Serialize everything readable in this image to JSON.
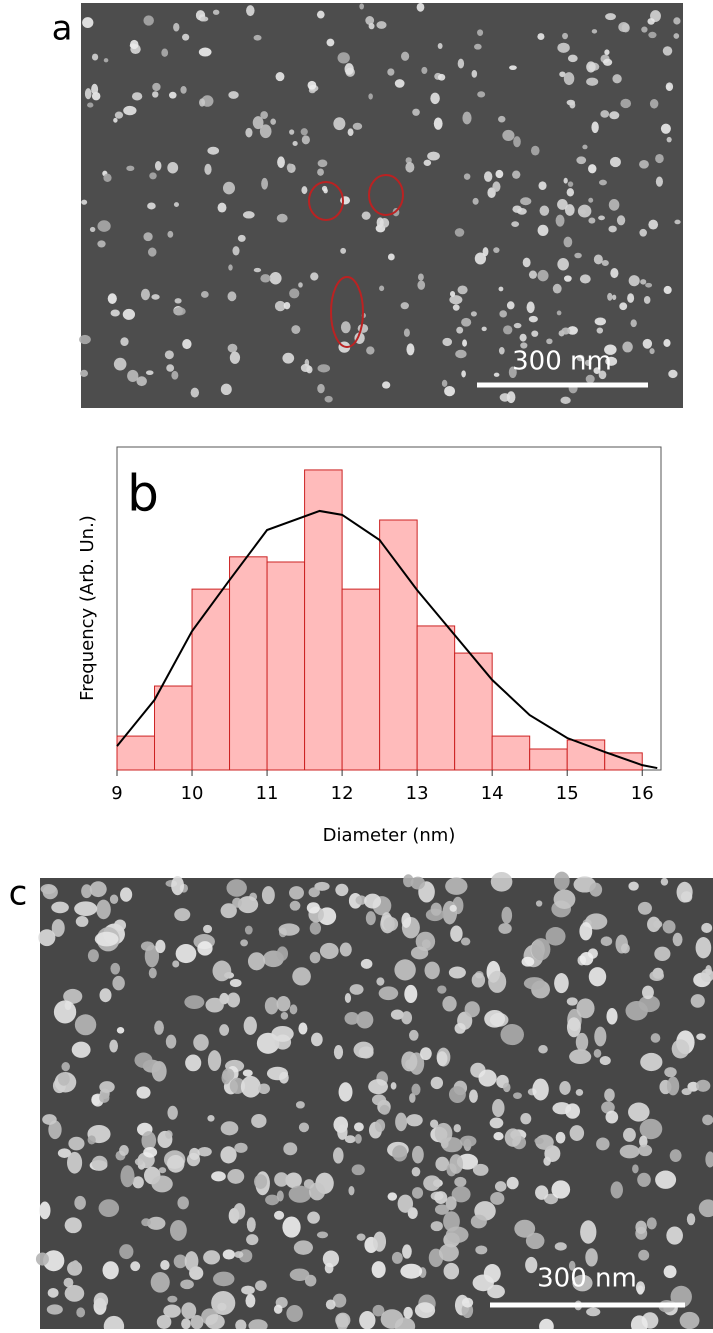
{
  "panels": [
    {
      "label": "a",
      "scale_bar": "300 nm"
    },
    {
      "label": "c",
      "scale_bar": "300 nm"
    }
  ],
  "chart_data": {
    "type": "histogram",
    "panel_label": "b",
    "x_label": "Diameter (nm)",
    "y_label": "Frequency (Arb. Un.)",
    "bins": [
      9,
      9.5,
      10,
      10.5,
      11,
      11.5,
      12,
      12.5,
      13,
      13.5,
      14,
      14.5,
      15,
      15.5,
      16
    ],
    "values": [
      10.5,
      26,
      56,
      66,
      64.4,
      92.9,
      56,
      77.4,
      44.6,
      36.2,
      10.5,
      6.5,
      9.3,
      5.3
    ],
    "color": "#ffbbbb",
    "edge_color": "#cc2222",
    "fit": {
      "x": [
        9,
        9.5,
        10,
        10.5,
        11,
        11.7,
        12,
        12.5,
        13,
        13.5,
        14,
        14.5,
        15,
        15.5,
        16,
        16.2
      ],
      "values": [
        7.4,
        21.7,
        43,
        58.8,
        74.3,
        80.2,
        79,
        71.2,
        55.7,
        41.8,
        27.9,
        17,
        9.9,
        5.6,
        1.5,
        0.6
      ],
      "color": "#000000"
    },
    "xlim": [
      9,
      16.25
    ],
    "ylim": [
      0,
      100
    ],
    "xticks": [
      9,
      10,
      11,
      12,
      13,
      14,
      15,
      16
    ]
  }
}
